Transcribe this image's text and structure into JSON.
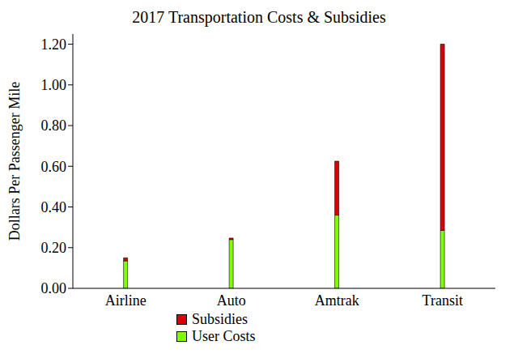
{
  "chart_data": {
    "type": "bar",
    "title": "2017 Transportation Costs & Subsidies",
    "y_label": "Dollars Per Passenger Mile",
    "categories": [
      "Airline",
      "Auto",
      "Amtrak",
      "Transit"
    ],
    "series": [
      {
        "name": "Subsidies",
        "color": "#dd0000",
        "values": [
          0.015,
          0.007,
          0.265,
          0.915
        ]
      },
      {
        "name": "User Costs",
        "color": "#80ff00",
        "values": [
          0.135,
          0.24,
          0.36,
          0.285
        ]
      }
    ],
    "stacked": true,
    "grid": false,
    "legend": "bottom",
    "ylim": [
      0,
      1.25
    ],
    "yticks": [
      {
        "value": 0,
        "label": "0.00"
      },
      {
        "value": 0.2,
        "label": "0.20"
      },
      {
        "value": 0.4,
        "label": "0.40"
      },
      {
        "value": 0.6,
        "label": "0.60"
      },
      {
        "value": 0.8,
        "label": "0.80"
      },
      {
        "value": 1.0,
        "label": "1.00"
      },
      {
        "value": 1.2,
        "label": "1.20"
      }
    ]
  }
}
